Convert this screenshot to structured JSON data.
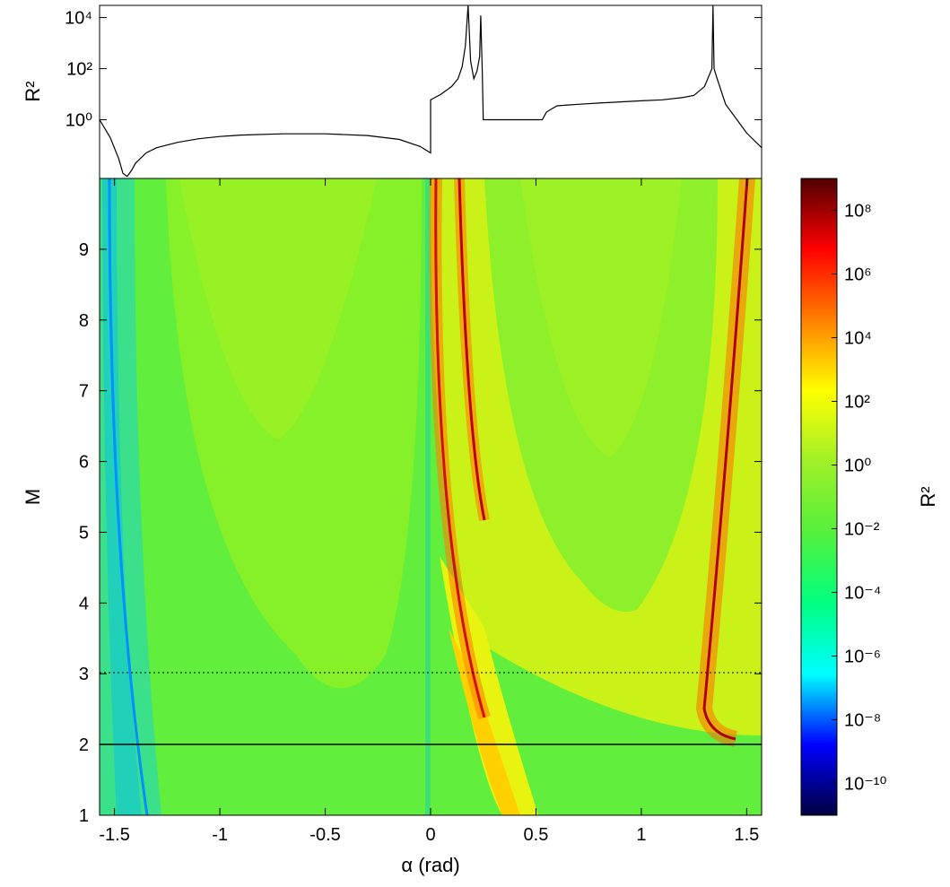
{
  "chart_data": [
    {
      "type": "line",
      "ylabel": "R²",
      "yscale": "log",
      "xlim": [
        -1.5708,
        1.5708
      ],
      "ylim": [
        0.005,
        30000
      ],
      "ytick_labels": [
        "10⁰",
        "10²",
        "10⁴"
      ],
      "grid": false,
      "series": [
        {
          "x": [
            -1.5708,
            -1.52,
            -1.48,
            -1.46,
            -1.44,
            -1.42,
            -1.4,
            -1.35,
            -1.3,
            -1.2,
            -1.1,
            -1.0,
            -0.9,
            -0.7,
            -0.5,
            -0.3,
            -0.15,
            -0.05,
            0.0,
            0.0,
            0.05,
            0.1,
            0.13,
            0.15,
            0.165,
            0.178,
            0.19,
            0.205,
            0.22,
            0.233,
            0.238,
            0.245,
            0.25,
            0.26,
            0.3,
            0.4,
            0.5,
            0.53,
            0.55,
            0.6,
            0.7,
            0.8,
            0.9,
            1.0,
            1.1,
            1.2,
            1.25,
            1.3,
            1.335,
            1.34,
            1.345,
            1.36,
            1.4,
            1.5,
            1.5708
          ],
          "y": [
            1,
            0.2,
            0.03,
            0.008,
            0.006,
            0.01,
            0.02,
            0.05,
            0.08,
            0.13,
            0.18,
            0.22,
            0.25,
            0.28,
            0.28,
            0.24,
            0.17,
            0.09,
            0.05,
            6,
            10,
            20,
            40,
            120,
            800,
            30000,
            200,
            40,
            80,
            300,
            12000,
            80,
            1,
            1,
            1,
            1,
            1,
            1,
            2,
            3.5,
            4,
            4.5,
            5,
            5.5,
            6,
            7.5,
            9,
            20,
            100,
            30000,
            100,
            40,
            4,
            0.3,
            0.08
          ]
        }
      ]
    },
    {
      "type": "heatmap",
      "xlabel": "α (rad)",
      "ylabel": "M",
      "xlim": [
        -1.5708,
        1.5708
      ],
      "ylim": [
        1,
        10
      ],
      "x_tick_labels": [
        "-1.5",
        "-1",
        "-0.5",
        "0",
        "0.5",
        "1",
        "1.5"
      ],
      "y_tick_labels": [
        "1",
        "2",
        "3",
        "4",
        "5",
        "6",
        "7",
        "8",
        "9"
      ],
      "colorbar": {
        "label": "R²",
        "scale": "log",
        "range": [
          1e-11,
          1000000000.0
        ],
        "tick_labels": [
          "10⁻¹⁰",
          "10⁻⁸",
          "10⁻⁶",
          "10⁻⁴",
          "10⁻²",
          "10⁰",
          "10²",
          "10⁴",
          "10⁶",
          "10⁸"
        ],
        "colormap": [
          "#000040",
          "#0000ff",
          "#00ffff",
          "#00ff80",
          "#55f03c",
          "#a0f028",
          "#ffff00",
          "#ff8000",
          "#ff0000",
          "#500000"
        ]
      },
      "reference_lines": [
        {
          "y": 3,
          "style": "dotted"
        },
        {
          "y": 2,
          "style": "solid"
        }
      ]
    }
  ]
}
